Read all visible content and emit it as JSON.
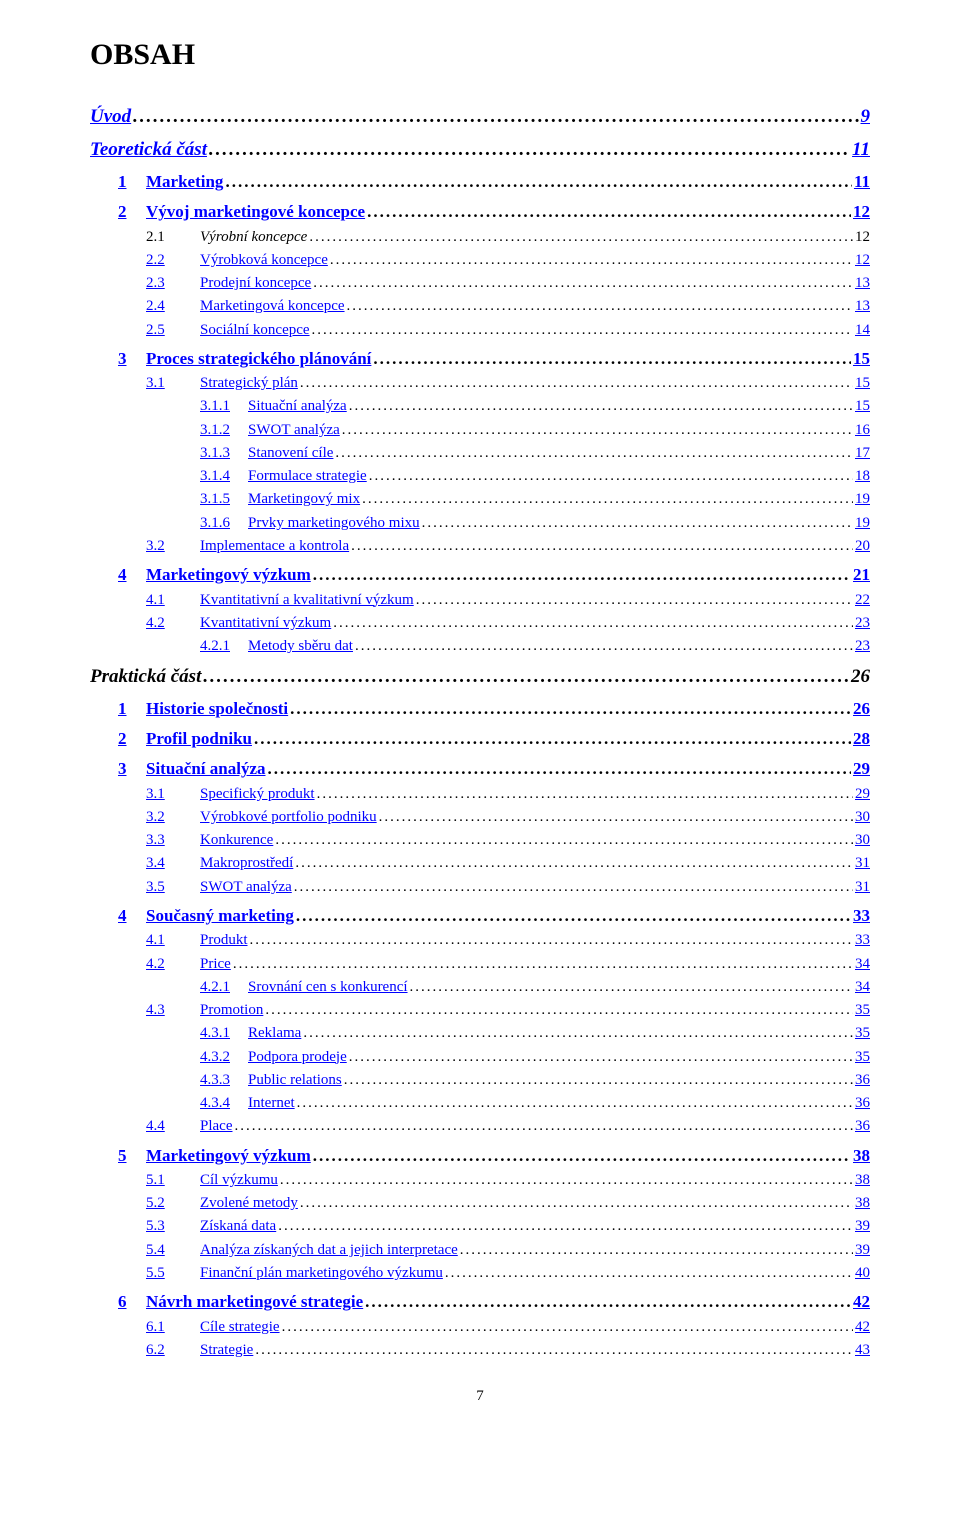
{
  "title": "OBSAH",
  "footer_page": "7",
  "colors": {
    "link": "#0000ff",
    "text": "#000000",
    "bg": "#ffffff"
  },
  "entries": [
    {
      "indent": 0,
      "level": "h1",
      "num": "",
      "label": "Úvod",
      "page": "9",
      "linkStyle": true
    },
    {
      "indent": 0,
      "level": "h1",
      "num": "",
      "label": "Teoretická část",
      "page": "11",
      "linkStyle": true,
      "gapBefore": true
    },
    {
      "indent": 1,
      "level": "h2",
      "num": "1",
      "label": "Marketing",
      "page": "11",
      "linkStyle": true,
      "gapBefore": true
    },
    {
      "indent": 1,
      "level": "h2",
      "num": "2",
      "label": "Vývoj marketingové koncepce",
      "page": "12",
      "linkStyle": true,
      "gapBefore": true
    },
    {
      "indent": 2,
      "level": "h3",
      "num": "2.1",
      "label": "Výrobní koncepce",
      "page": "12",
      "linkStyle": false,
      "italicLabel": true
    },
    {
      "indent": 2,
      "level": "h3",
      "num": "2.2",
      "label": "Výrobková koncepce",
      "page": "12",
      "linkStyle": true
    },
    {
      "indent": 2,
      "level": "h3",
      "num": "2.3",
      "label": "Prodejní koncepce",
      "page": "13",
      "linkStyle": true
    },
    {
      "indent": 2,
      "level": "h3",
      "num": "2.4",
      "label": "Marketingová koncepce",
      "page": "13",
      "linkStyle": true
    },
    {
      "indent": 2,
      "level": "h3",
      "num": "2.5",
      "label": "Sociální koncepce",
      "page": "14",
      "linkStyle": true
    },
    {
      "indent": 1,
      "level": "h2",
      "num": "3",
      "label": "Proces strategického plánování",
      "page": "15",
      "linkStyle": true,
      "gapBefore": true
    },
    {
      "indent": 2,
      "level": "h3",
      "num": "3.1",
      "label": "Strategický plán",
      "page": "15",
      "linkStyle": true
    },
    {
      "indent": 3,
      "level": "h4",
      "num": "3.1.1",
      "label": "Situační analýza",
      "page": "15",
      "linkStyle": true
    },
    {
      "indent": 3,
      "level": "h4",
      "num": "3.1.2",
      "label": "SWOT analýza",
      "page": "16",
      "linkStyle": true
    },
    {
      "indent": 3,
      "level": "h4",
      "num": "3.1.3",
      "label": "Stanovení cíle",
      "page": "17",
      "linkStyle": true
    },
    {
      "indent": 3,
      "level": "h4",
      "num": "3.1.4",
      "label": "Formulace strategie",
      "page": "18",
      "linkStyle": true
    },
    {
      "indent": 3,
      "level": "h4",
      "num": "3.1.5",
      "label": "Marketingový mix",
      "page": "19",
      "linkStyle": true
    },
    {
      "indent": 3,
      "level": "h4",
      "num": "3.1.6",
      "label": "Prvky marketingového mixu",
      "page": "19",
      "linkStyle": true
    },
    {
      "indent": 2,
      "level": "h3",
      "num": "3.2",
      "label": "Implementace a kontrola",
      "page": "20",
      "linkStyle": true
    },
    {
      "indent": 1,
      "level": "h2",
      "num": "4",
      "label": "Marketingový výzkum",
      "page": "21",
      "linkStyle": true,
      "gapBefore": true
    },
    {
      "indent": 2,
      "level": "h3",
      "num": "4.1",
      "label": "Kvantitativní a kvalitativní výzkum",
      "page": "22",
      "linkStyle": true
    },
    {
      "indent": 2,
      "level": "h3",
      "num": "4.2",
      "label": "Kvantitativní výzkum",
      "page": "23",
      "linkStyle": true
    },
    {
      "indent": 3,
      "level": "h4",
      "num": "4.2.1",
      "label": "Metody sběru dat",
      "page": "23",
      "linkStyle": true
    },
    {
      "indent": 0,
      "level": "h1",
      "num": "",
      "label": "Praktická část",
      "page": "26",
      "linkStyle": false,
      "italicLabel": true,
      "gapBefore": true
    },
    {
      "indent": 1,
      "level": "h2",
      "num": "1",
      "label": "Historie společnosti",
      "page": "26",
      "linkStyle": true,
      "gapBefore": true
    },
    {
      "indent": 1,
      "level": "h2",
      "num": "2",
      "label": "Profil podniku",
      "page": "28",
      "linkStyle": true,
      "gapBefore": true
    },
    {
      "indent": 1,
      "level": "h2",
      "num": "3",
      "label": "Situační analýza",
      "page": "29",
      "linkStyle": true,
      "gapBefore": true
    },
    {
      "indent": 2,
      "level": "h3",
      "num": "3.1",
      "label": "Specifický produkt",
      "page": "29",
      "linkStyle": true
    },
    {
      "indent": 2,
      "level": "h3",
      "num": "3.2",
      "label": "Výrobkové portfolio podniku",
      "page": "30",
      "linkStyle": true
    },
    {
      "indent": 2,
      "level": "h3",
      "num": "3.3",
      "label": "Konkurence",
      "page": "30",
      "linkStyle": true
    },
    {
      "indent": 2,
      "level": "h3",
      "num": "3.4",
      "label": "Makroprostředí",
      "page": "31",
      "linkStyle": true
    },
    {
      "indent": 2,
      "level": "h3",
      "num": "3.5",
      "label": "SWOT analýza",
      "page": "31",
      "linkStyle": true
    },
    {
      "indent": 1,
      "level": "h2",
      "num": "4",
      "label": "Současný marketing",
      "page": "33",
      "linkStyle": true,
      "gapBefore": true
    },
    {
      "indent": 2,
      "level": "h3",
      "num": "4.1",
      "label": "Produkt",
      "page": "33",
      "linkStyle": true
    },
    {
      "indent": 2,
      "level": "h3",
      "num": "4.2",
      "label": "Price",
      "page": "34",
      "linkStyle": true
    },
    {
      "indent": 3,
      "level": "h4",
      "num": "4.2.1",
      "label": "Srovnání cen s konkurencí",
      "page": "34",
      "linkStyle": true
    },
    {
      "indent": 2,
      "level": "h3",
      "num": "4.3",
      "label": "Promotion",
      "page": "35",
      "linkStyle": true
    },
    {
      "indent": 3,
      "level": "h4",
      "num": "4.3.1",
      "label": "Reklama",
      "page": "35",
      "linkStyle": true
    },
    {
      "indent": 3,
      "level": "h4",
      "num": "4.3.2",
      "label": "Podpora prodeje",
      "page": "35",
      "linkStyle": true
    },
    {
      "indent": 3,
      "level": "h4",
      "num": "4.3.3",
      "label": "Public relations",
      "page": "36",
      "linkStyle": true
    },
    {
      "indent": 3,
      "level": "h4",
      "num": "4.3.4",
      "label": "Internet",
      "page": "36",
      "linkStyle": true
    },
    {
      "indent": 2,
      "level": "h3",
      "num": "4.4",
      "label": "Place",
      "page": "36",
      "linkStyle": true
    },
    {
      "indent": 1,
      "level": "h2",
      "num": "5",
      "label": "Marketingový výzkum",
      "page": "38",
      "linkStyle": true,
      "gapBefore": true
    },
    {
      "indent": 2,
      "level": "h3",
      "num": "5.1",
      "label": "Cíl výzkumu",
      "page": "38",
      "linkStyle": true
    },
    {
      "indent": 2,
      "level": "h3",
      "num": "5.2",
      "label": "Zvolené metody",
      "page": "38",
      "linkStyle": true
    },
    {
      "indent": 2,
      "level": "h3",
      "num": "5.3",
      "label": "Získaná data",
      "page": "39",
      "linkStyle": true
    },
    {
      "indent": 2,
      "level": "h3",
      "num": "5.4",
      "label": "Analýza získaných dat a jejich interpretace",
      "page": "39",
      "linkStyle": true
    },
    {
      "indent": 2,
      "level": "h3",
      "num": "5.5",
      "label": "Finanční plán marketingového výzkumu",
      "page": "40",
      "linkStyle": true
    },
    {
      "indent": 1,
      "level": "h2",
      "num": "6",
      "label": "Návrh marketingové strategie",
      "page": "42",
      "linkStyle": true,
      "gapBefore": true
    },
    {
      "indent": 2,
      "level": "h3",
      "num": "6.1",
      "label": "Cíle strategie",
      "page": "42",
      "linkStyle": true
    },
    {
      "indent": 2,
      "level": "h3",
      "num": "6.2",
      "label": "Strategie",
      "page": "43",
      "linkStyle": true
    }
  ]
}
